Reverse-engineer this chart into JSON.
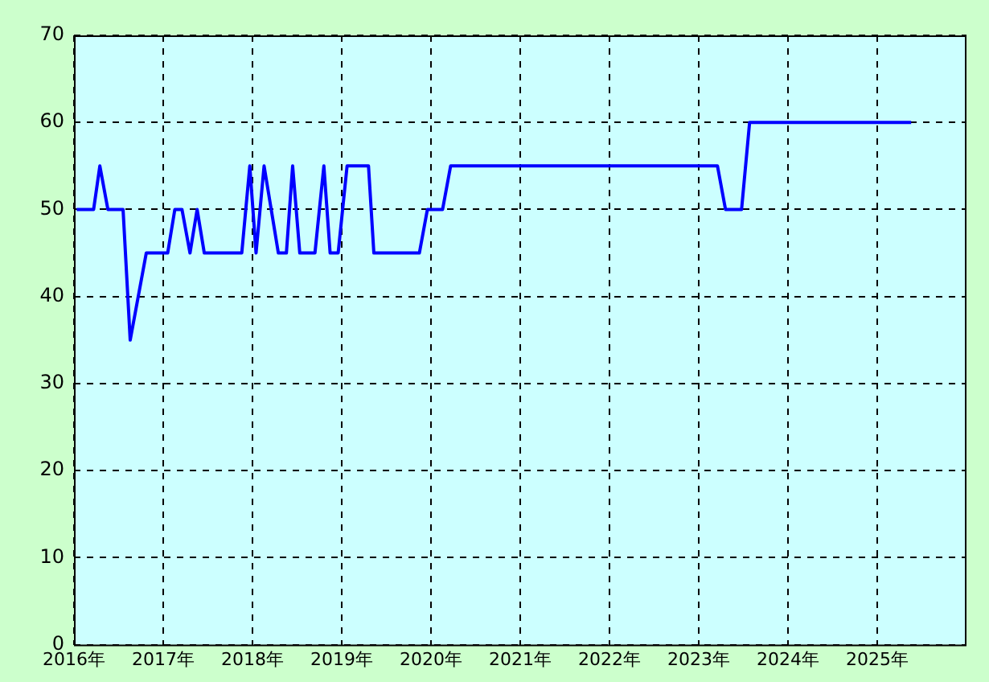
{
  "chart_data": {
    "type": "line",
    "x": [
      2016.03,
      2016.22,
      2016.29,
      2016.38,
      2016.55,
      2016.63,
      2016.81,
      2017.05,
      2017.13,
      2017.21,
      2017.3,
      2017.38,
      2017.46,
      2017.88,
      2017.97,
      2018.04,
      2018.13,
      2018.29,
      2018.38,
      2018.45,
      2018.53,
      2018.7,
      2018.8,
      2018.87,
      2018.96,
      2019.06,
      2019.3,
      2019.36,
      2019.87,
      2019.96,
      2020.13,
      2020.22,
      2023.21,
      2023.3,
      2023.48,
      2023.57,
      2025.38
    ],
    "series": [
      {
        "color": "#0000ff",
        "values": [
          50,
          50,
          55,
          50,
          50,
          35,
          45,
          45,
          50,
          50,
          45,
          50,
          45,
          45,
          55,
          45,
          55,
          45,
          45,
          55,
          45,
          45,
          55,
          45,
          45,
          55,
          55,
          45,
          45,
          50,
          50,
          55,
          55,
          50,
          50,
          60,
          60
        ]
      }
    ],
    "xlim": [
      2016,
      2026
    ],
    "xticks": [
      {
        "value": 2016,
        "label": "2016年"
      },
      {
        "value": 2017,
        "label": "2017年"
      },
      {
        "value": 2018,
        "label": "2018年"
      },
      {
        "value": 2019,
        "label": "2019年"
      },
      {
        "value": 2020,
        "label": "2020年"
      },
      {
        "value": 2021,
        "label": "2021年"
      },
      {
        "value": 2022,
        "label": "2022年"
      },
      {
        "value": 2023,
        "label": "2023年"
      },
      {
        "value": 2024,
        "label": "2024年"
      },
      {
        "value": 2025,
        "label": "2025年"
      }
    ],
    "ylim": [
      0,
      70
    ],
    "yticks": [
      0,
      10,
      20,
      30,
      40,
      50,
      60,
      70
    ],
    "grid": true,
    "marker": "none",
    "line_style": "solid",
    "legend": false
  }
}
